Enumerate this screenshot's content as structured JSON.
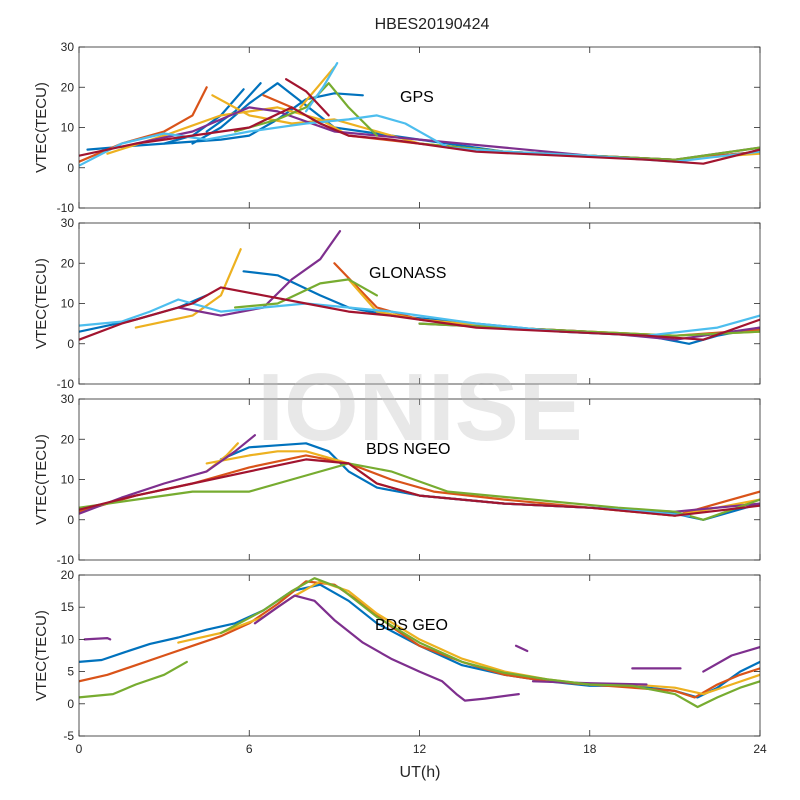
{
  "figure": {
    "title": "HBES20190424",
    "xlabel": "UT(h)",
    "watermark": "IONISE"
  },
  "colors": [
    "#0072BD",
    "#D95319",
    "#EDB120",
    "#7E2F8E",
    "#77AC30",
    "#4DBEEE",
    "#A2142F"
  ],
  "chart_data": [
    {
      "type": "line",
      "annotation": "GPS",
      "ylabel": "VTEC(TECU)",
      "xlim": [
        0,
        24
      ],
      "ylim": [
        -10,
        30
      ],
      "xticks": [
        0,
        6,
        12,
        18,
        24
      ],
      "yticks": [
        -10,
        0,
        10,
        20,
        30
      ],
      "series": [
        {
          "color": 0,
          "x": [
            0.3,
            2,
            4,
            5,
            6,
            7,
            8,
            9,
            10
          ],
          "y": [
            4.5,
            5.5,
            6.5,
            7,
            8,
            12,
            17,
            18.5,
            18
          ]
        },
        {
          "color": 0,
          "x": [
            4,
            5,
            6,
            7,
            9,
            12,
            15,
            18,
            21,
            24
          ],
          "y": [
            6,
            10,
            16,
            21,
            10,
            7,
            4,
            3,
            2,
            4
          ]
        },
        {
          "color": 0,
          "x": [
            3,
            4,
            5,
            5.8
          ],
          "y": [
            6,
            8,
            13,
            19.5
          ]
        },
        {
          "color": 0,
          "x": [
            4.5,
            5.5,
            6.4
          ],
          "y": [
            9,
            14,
            21
          ]
        },
        {
          "color": 1,
          "x": [
            0,
            1.5,
            3,
            4,
            4.5
          ],
          "y": [
            1.5,
            6,
            9,
            13,
            20
          ]
        },
        {
          "color": 1,
          "x": [
            6.5,
            7.5,
            8.5,
            9.5,
            12,
            15,
            18,
            21,
            24
          ],
          "y": [
            18,
            15,
            11,
            8,
            6,
            4,
            3,
            2,
            4
          ]
        },
        {
          "color": 2,
          "x": [
            1,
            3,
            5,
            7,
            8.5,
            9.5
          ],
          "y": [
            3.5,
            8,
            13,
            15,
            12,
            8
          ]
        },
        {
          "color": 2,
          "x": [
            4.7,
            6,
            7.5,
            9,
            10,
            12,
            15,
            18,
            21,
            24
          ],
          "y": [
            18,
            13,
            11,
            12,
            10,
            6,
            4,
            3,
            2,
            3.5
          ]
        },
        {
          "color": 2,
          "x": [
            7.8,
            8.4,
            9
          ],
          "y": [
            15,
            20,
            25
          ]
        },
        {
          "color": 3,
          "x": [
            2,
            4,
            5,
            6,
            7,
            9,
            12,
            15,
            18,
            21,
            24
          ],
          "y": [
            6,
            9,
            12,
            15,
            14,
            9,
            7,
            5,
            3,
            2,
            5
          ]
        },
        {
          "color": 4,
          "x": [
            5.5,
            7,
            8,
            8.8,
            9.5,
            10.5
          ],
          "y": [
            9,
            12,
            15,
            21,
            15,
            8
          ]
        },
        {
          "color": 4,
          "x": [
            12,
            15,
            18,
            21,
            24
          ],
          "y": [
            6,
            4,
            3,
            2,
            5
          ]
        },
        {
          "color": 5,
          "x": [
            0,
            1.5,
            3,
            4.5,
            6,
            8,
            9.5,
            10.5,
            11.5,
            13
          ],
          "y": [
            0.5,
            6,
            8.5,
            7,
            9,
            11,
            12,
            13,
            11,
            5
          ]
        },
        {
          "color": 5,
          "x": [
            8,
            8.6,
            9.1
          ],
          "y": [
            14,
            20,
            26
          ]
        },
        {
          "color": 5,
          "x": [
            13,
            15,
            18,
            21,
            24
          ],
          "y": [
            5,
            4,
            3,
            1.5,
            4
          ]
        },
        {
          "color": 6,
          "x": [
            0,
            2,
            4,
            6,
            7.5,
            8.5,
            9.5,
            11,
            14,
            17,
            20,
            22,
            24
          ],
          "y": [
            3,
            6,
            8,
            10,
            15,
            11,
            8,
            7,
            4,
            3,
            2,
            1,
            4.5
          ]
        },
        {
          "color": 6,
          "x": [
            7.3,
            8,
            8.8
          ],
          "y": [
            22,
            19,
            13
          ]
        }
      ]
    },
    {
      "type": "line",
      "annotation": "GLONASS",
      "ylabel": "VTEC(TECU)",
      "xlim": [
        0,
        24
      ],
      "ylim": [
        -10,
        30
      ],
      "xticks": [
        0,
        6,
        12,
        18,
        24
      ],
      "yticks": [
        -10,
        0,
        10,
        20,
        30
      ],
      "series": [
        {
          "color": 0,
          "x": [
            5.8,
            7,
            8.5,
            9.5,
            11,
            14,
            17,
            20,
            21.5,
            22.5,
            24
          ],
          "y": [
            18,
            17,
            12,
            9,
            7,
            5,
            3,
            2,
            0,
            2,
            4
          ]
        },
        {
          "color": 0,
          "x": [
            0,
            2,
            3.5,
            4.5
          ],
          "y": [
            3,
            6,
            9,
            12
          ]
        },
        {
          "color": 1,
          "x": [
            9,
            10.5,
            12,
            15,
            18,
            21,
            24
          ],
          "y": [
            20,
            9,
            6,
            4,
            3,
            2,
            3.5
          ]
        },
        {
          "color": 2,
          "x": [
            2,
            4,
            5,
            5.7
          ],
          "y": [
            4,
            7,
            12,
            23.5
          ]
        },
        {
          "color": 2,
          "x": [
            9.5,
            10.5,
            12,
            15,
            18,
            21,
            24
          ],
          "y": [
            16,
            8,
            6,
            4,
            3,
            2,
            3
          ]
        },
        {
          "color": 3,
          "x": [
            3.5,
            5,
            6.5,
            7.5,
            8.5,
            9.2
          ],
          "y": [
            9,
            7,
            9,
            16,
            21,
            28
          ]
        },
        {
          "color": 3,
          "x": [
            12,
            15,
            18,
            21,
            24
          ],
          "y": [
            5,
            4,
            3,
            1,
            4
          ]
        },
        {
          "color": 4,
          "x": [
            5.5,
            7,
            8.5,
            9.5,
            10.5
          ],
          "y": [
            9,
            10,
            15,
            16,
            12
          ]
        },
        {
          "color": 4,
          "x": [
            12,
            15,
            18,
            21,
            24
          ],
          "y": [
            5,
            4,
            3,
            2,
            3
          ]
        },
        {
          "color": 5,
          "x": [
            0,
            1.5,
            2.5,
            3.5,
            5,
            6.5,
            8,
            9.5,
            11,
            14,
            17,
            20,
            22.5,
            24
          ],
          "y": [
            4.5,
            5.5,
            8,
            11,
            8,
            9,
            10,
            9,
            8,
            5,
            3,
            2,
            4,
            7
          ]
        },
        {
          "color": 6,
          "x": [
            0,
            1.5,
            3,
            4,
            5,
            6.5,
            8,
            9.5,
            11,
            14,
            17,
            20,
            22,
            24
          ],
          "y": [
            1,
            5,
            8,
            10,
            14,
            12,
            10,
            8,
            7,
            4,
            3,
            2,
            1,
            6
          ]
        }
      ]
    },
    {
      "type": "line",
      "annotation": "BDS NGEO",
      "ylabel": "VTEC(TECU)",
      "xlim": [
        0,
        24
      ],
      "ylim": [
        -10,
        30
      ],
      "xticks": [
        0,
        6,
        12,
        18,
        24
      ],
      "yticks": [
        -10,
        0,
        10,
        20,
        30
      ],
      "series": [
        {
          "color": 0,
          "x": [
            5,
            6,
            7,
            8,
            8.8,
            9.5,
            10.5,
            12,
            15,
            18,
            21,
            22,
            24
          ],
          "y": [
            15,
            18,
            18.5,
            19,
            17,
            12,
            8,
            6,
            4,
            3,
            1.5,
            0,
            4
          ]
        },
        {
          "color": 1,
          "x": [
            0,
            2,
            4,
            6,
            8,
            9.5,
            11,
            12.5,
            15,
            18,
            21,
            22.5,
            24
          ],
          "y": [
            2,
            6,
            9,
            13,
            16,
            14,
            10,
            7,
            5,
            3,
            1,
            4,
            7
          ]
        },
        {
          "color": 2,
          "x": [
            4.5,
            6,
            7,
            8,
            9.5,
            10.5,
            12,
            15,
            18,
            21,
            24
          ],
          "y": [
            14,
            16,
            17,
            17,
            14,
            9,
            6,
            4,
            3,
            1,
            5
          ]
        },
        {
          "color": 2,
          "x": [
            4.5,
            5.2,
            5.6
          ],
          "y": [
            12,
            16,
            19
          ]
        },
        {
          "color": 3,
          "x": [
            0,
            1.5,
            3,
            4.5,
            5.5,
            6.2
          ],
          "y": [
            1.5,
            5.5,
            9,
            12,
            17,
            21
          ]
        },
        {
          "color": 3,
          "x": [
            12,
            15,
            18,
            21,
            24
          ],
          "y": [
            6,
            4,
            3,
            2,
            4
          ]
        },
        {
          "color": 4,
          "x": [
            0,
            2,
            4,
            6,
            8,
            9.5,
            11,
            13,
            16,
            19,
            21,
            22,
            24
          ],
          "y": [
            3,
            5,
            7,
            7,
            11,
            14,
            12,
            7,
            5,
            3,
            2,
            0,
            5
          ]
        },
        {
          "color": 5,
          "x": [
            12,
            15,
            18,
            20,
            21.5
          ],
          "y": [
            6,
            4,
            3,
            2,
            1
          ]
        },
        {
          "color": 6,
          "x": [
            0,
            2,
            4,
            6,
            8,
            9.5,
            10.5,
            12,
            15,
            18,
            21,
            24
          ],
          "y": [
            2.5,
            6,
            9,
            12,
            15,
            14,
            9,
            6,
            4,
            3,
            1,
            3.5
          ]
        }
      ]
    },
    {
      "type": "line",
      "annotation": "BDS GEO",
      "ylabel": "VTEC(TECU)",
      "xlim": [
        0,
        24
      ],
      "ylim": [
        -5,
        20
      ],
      "xticks": [
        0,
        6,
        12,
        18,
        24
      ],
      "yticks": [
        -5,
        0,
        5,
        10,
        15,
        20
      ],
      "series": [
        {
          "color": 0,
          "x": [
            0,
            0.8,
            1.6,
            2.5,
            3.5,
            4.5,
            5.5,
            6.5,
            7.5,
            8.5,
            9.5,
            10.5,
            12,
            13.5,
            15,
            16.5,
            18,
            19.5,
            21,
            21.8,
            22.5,
            23.3,
            24
          ],
          "y": [
            6.5,
            6.8,
            8,
            9.3,
            10.3,
            11.5,
            12.5,
            14.5,
            17.5,
            18.5,
            16,
            12.5,
            9,
            6,
            4.5,
            3.5,
            2.8,
            2.8,
            2,
            1,
            2.5,
            5,
            6.5
          ]
        },
        {
          "color": 1,
          "x": [
            0,
            1,
            2,
            3,
            4,
            5,
            6,
            7,
            8,
            9,
            10,
            11,
            12,
            13.5,
            15,
            16.5,
            18,
            19.5,
            21,
            21.7,
            22.5,
            23.3,
            24
          ],
          "y": [
            3.5,
            4.5,
            6,
            7.5,
            9,
            10.5,
            12.5,
            15.5,
            19,
            18.5,
            15.5,
            12,
            9,
            6.5,
            4.5,
            3.5,
            3,
            2.5,
            2,
            1,
            3,
            4.5,
            5.5
          ]
        },
        {
          "color": 2,
          "x": [
            3.5,
            5,
            6.5,
            7.5,
            8.5,
            9.5,
            10.5,
            12,
            13.5,
            15,
            16.5,
            18,
            19.5,
            21,
            22,
            23,
            24
          ],
          "y": [
            9.5,
            11,
            13.5,
            16.5,
            19,
            17.5,
            14,
            10,
            7,
            5,
            3.8,
            3,
            3,
            2.5,
            1.5,
            3,
            4.5
          ]
        },
        {
          "color": 3,
          "x": [
            0.2,
            1,
            1.1
          ],
          "y": [
            10,
            10.2,
            10
          ]
        },
        {
          "color": 3,
          "x": [
            6.2,
            7,
            7.6,
            8.3,
            9,
            10,
            11,
            12,
            12.8,
            13.3,
            13.6,
            14.3,
            15.5
          ],
          "y": [
            12.5,
            15,
            16.8,
            16,
            13,
            9.5,
            7,
            5,
            3.5,
            1.5,
            0.5,
            0.8,
            1.5
          ]
        },
        {
          "color": 3,
          "x": [
            15.4,
            15.8
          ],
          "y": [
            9,
            8.2
          ]
        },
        {
          "color": 3,
          "x": [
            19.5,
            21.2
          ],
          "y": [
            5.5,
            5.5
          ]
        },
        {
          "color": 3,
          "x": [
            22,
            23,
            24
          ],
          "y": [
            5,
            7.5,
            8.8
          ]
        },
        {
          "color": 3,
          "x": [
            16,
            18,
            20
          ],
          "y": [
            3.5,
            3.2,
            3
          ]
        },
        {
          "color": 4,
          "x": [
            0,
            1.2,
            2,
            3,
            3.8
          ],
          "y": [
            1,
            1.5,
            3,
            4.5,
            6.5
          ]
        },
        {
          "color": 4,
          "x": [
            5,
            6.5,
            7.5,
            8.3,
            9.2,
            10.5,
            12,
            13.5,
            15,
            16.5,
            18,
            19.5,
            21,
            21.8,
            22.5,
            23.3,
            24
          ],
          "y": [
            11,
            14.5,
            17.5,
            19.5,
            18,
            13.5,
            9.5,
            6.5,
            4.8,
            3.8,
            3,
            2.8,
            1.5,
            -0.5,
            1,
            2.5,
            3.5
          ]
        }
      ]
    }
  ]
}
